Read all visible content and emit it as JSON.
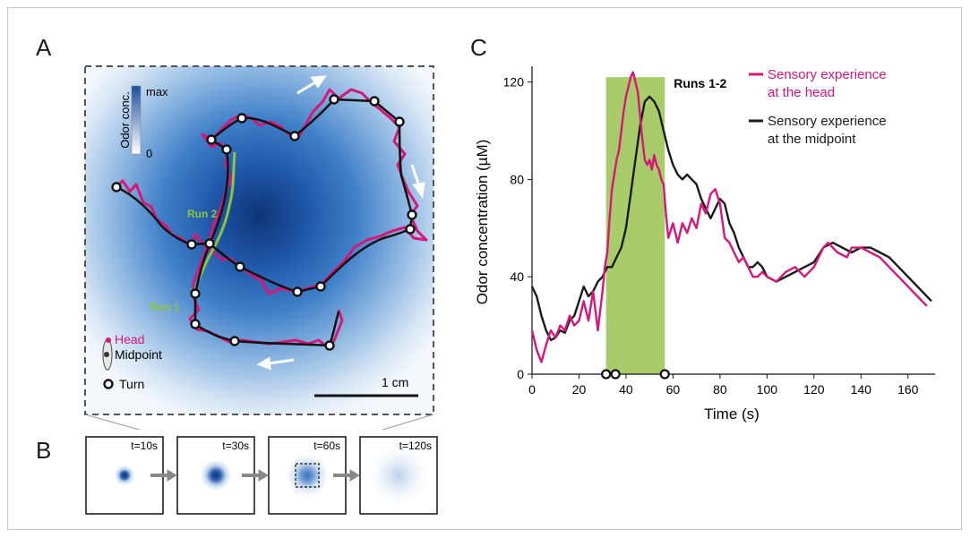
{
  "panels": {
    "a": {
      "letter": "A",
      "colorbar_title": "Odor conc.",
      "colorbar_max": "max",
      "colorbar_min": "0",
      "run1_label": "Run 1",
      "run2_label": "Run 2",
      "legend_head": "Head",
      "legend_midpoint": "Midpoint",
      "legend_turn": "Turn",
      "scalebar_label": "1 cm",
      "colors": {
        "head": "#d6177a",
        "midpoint": "#111111",
        "run": "#8cc63f",
        "odor": "#1e4fa0"
      }
    },
    "b": {
      "letter": "B",
      "snapshots": [
        {
          "label": "t=10s",
          "level": 0.9
        },
        {
          "label": "t=30s",
          "level": 0.95
        },
        {
          "label": "t=60s",
          "level": 0.7
        },
        {
          "label": "t=120s",
          "level": 0.25
        }
      ]
    },
    "c": {
      "letter": "C"
    }
  },
  "chart_data": {
    "type": "line",
    "title": "",
    "xlabel": "Time (s)",
    "ylabel": "Odor concentration (µM)",
    "xlim": [
      0,
      170
    ],
    "ylim": [
      0,
      125
    ],
    "xticks": [
      0,
      20,
      40,
      60,
      80,
      100,
      120,
      140,
      160
    ],
    "yticks": [
      0,
      40,
      80,
      120
    ],
    "highlight": {
      "label": "Runs 1-2",
      "x_start": 31.5,
      "x_end": 56.5,
      "color": "#a9cc6a"
    },
    "turn_markers_x": [
      31.5,
      35.5,
      56.5
    ],
    "series": [
      {
        "name": "Sensory experience at the head",
        "color": "#d6177a",
        "points": [
          [
            0,
            18
          ],
          [
            2,
            10
          ],
          [
            4,
            5
          ],
          [
            6,
            12
          ],
          [
            8,
            18
          ],
          [
            10,
            15
          ],
          [
            12,
            20
          ],
          [
            14,
            18
          ],
          [
            16,
            24
          ],
          [
            18,
            20
          ],
          [
            20,
            22
          ],
          [
            22,
            30
          ],
          [
            24,
            22
          ],
          [
            26,
            34
          ],
          [
            28,
            18
          ],
          [
            30,
            34
          ],
          [
            31,
            44
          ],
          [
            32,
            50
          ],
          [
            33,
            64
          ],
          [
            34,
            76
          ],
          [
            35,
            82
          ],
          [
            36,
            88
          ],
          [
            37,
            92
          ],
          [
            38,
            100
          ],
          [
            39,
            108
          ],
          [
            40,
            114
          ],
          [
            41,
            118
          ],
          [
            42,
            122
          ],
          [
            43,
            124
          ],
          [
            44,
            120
          ],
          [
            45,
            116
          ],
          [
            46,
            106
          ],
          [
            47,
            96
          ],
          [
            48,
            88
          ],
          [
            49,
            86
          ],
          [
            50,
            88
          ],
          [
            51,
            84
          ],
          [
            52,
            90
          ],
          [
            53,
            86
          ],
          [
            54,
            84
          ],
          [
            55,
            80
          ],
          [
            56,
            78
          ],
          [
            57,
            66
          ],
          [
            58,
            56
          ],
          [
            60,
            62
          ],
          [
            62,
            54
          ],
          [
            64,
            62
          ],
          [
            66,
            58
          ],
          [
            68,
            64
          ],
          [
            70,
            60
          ],
          [
            72,
            70
          ],
          [
            74,
            66
          ],
          [
            76,
            74
          ],
          [
            78,
            76
          ],
          [
            80,
            70
          ],
          [
            82,
            56
          ],
          [
            84,
            54
          ],
          [
            86,
            50
          ],
          [
            88,
            46
          ],
          [
            90,
            48
          ],
          [
            92,
            44
          ],
          [
            94,
            40
          ],
          [
            96,
            40
          ],
          [
            98,
            42
          ],
          [
            100,
            40
          ],
          [
            104,
            38
          ],
          [
            108,
            42
          ],
          [
            112,
            44
          ],
          [
            116,
            40
          ],
          [
            120,
            44
          ],
          [
            124,
            52
          ],
          [
            126,
            54
          ],
          [
            128,
            52
          ],
          [
            130,
            50
          ],
          [
            134,
            48
          ],
          [
            136,
            52
          ],
          [
            140,
            52
          ],
          [
            144,
            50
          ],
          [
            148,
            48
          ],
          [
            152,
            44
          ],
          [
            156,
            40
          ],
          [
            160,
            36
          ],
          [
            164,
            32
          ],
          [
            168,
            28
          ]
        ]
      },
      {
        "name": "Sensory experience at the midpoint",
        "color": "#1a1a1a",
        "points": [
          [
            0,
            36
          ],
          [
            2,
            32
          ],
          [
            4,
            24
          ],
          [
            6,
            18
          ],
          [
            8,
            14
          ],
          [
            10,
            15
          ],
          [
            12,
            18
          ],
          [
            14,
            17
          ],
          [
            16,
            22
          ],
          [
            18,
            24
          ],
          [
            20,
            30
          ],
          [
            22,
            36
          ],
          [
            24,
            32
          ],
          [
            26,
            34
          ],
          [
            28,
            38
          ],
          [
            30,
            40
          ],
          [
            31,
            42
          ],
          [
            32,
            44
          ],
          [
            34,
            44
          ],
          [
            35,
            46
          ],
          [
            36,
            48
          ],
          [
            38,
            52
          ],
          [
            40,
            60
          ],
          [
            42,
            74
          ],
          [
            44,
            88
          ],
          [
            46,
            102
          ],
          [
            48,
            112
          ],
          [
            50,
            114
          ],
          [
            52,
            112
          ],
          [
            54,
            108
          ],
          [
            56,
            100
          ],
          [
            58,
            92
          ],
          [
            60,
            86
          ],
          [
            62,
            82
          ],
          [
            64,
            80
          ],
          [
            66,
            82
          ],
          [
            68,
            80
          ],
          [
            70,
            78
          ],
          [
            72,
            72
          ],
          [
            74,
            68
          ],
          [
            76,
            64
          ],
          [
            78,
            68
          ],
          [
            80,
            72
          ],
          [
            82,
            70
          ],
          [
            84,
            62
          ],
          [
            86,
            58
          ],
          [
            88,
            52
          ],
          [
            90,
            48
          ],
          [
            92,
            44
          ],
          [
            94,
            44
          ],
          [
            96,
            46
          ],
          [
            98,
            44
          ],
          [
            100,
            40
          ],
          [
            104,
            38
          ],
          [
            108,
            40
          ],
          [
            112,
            42
          ],
          [
            116,
            44
          ],
          [
            120,
            46
          ],
          [
            124,
            52
          ],
          [
            128,
            54
          ],
          [
            132,
            52
          ],
          [
            136,
            50
          ],
          [
            140,
            52
          ],
          [
            144,
            52
          ],
          [
            148,
            50
          ],
          [
            152,
            48
          ],
          [
            156,
            44
          ],
          [
            160,
            40
          ],
          [
            164,
            36
          ],
          [
            168,
            32
          ],
          [
            170,
            30
          ]
        ]
      }
    ]
  }
}
